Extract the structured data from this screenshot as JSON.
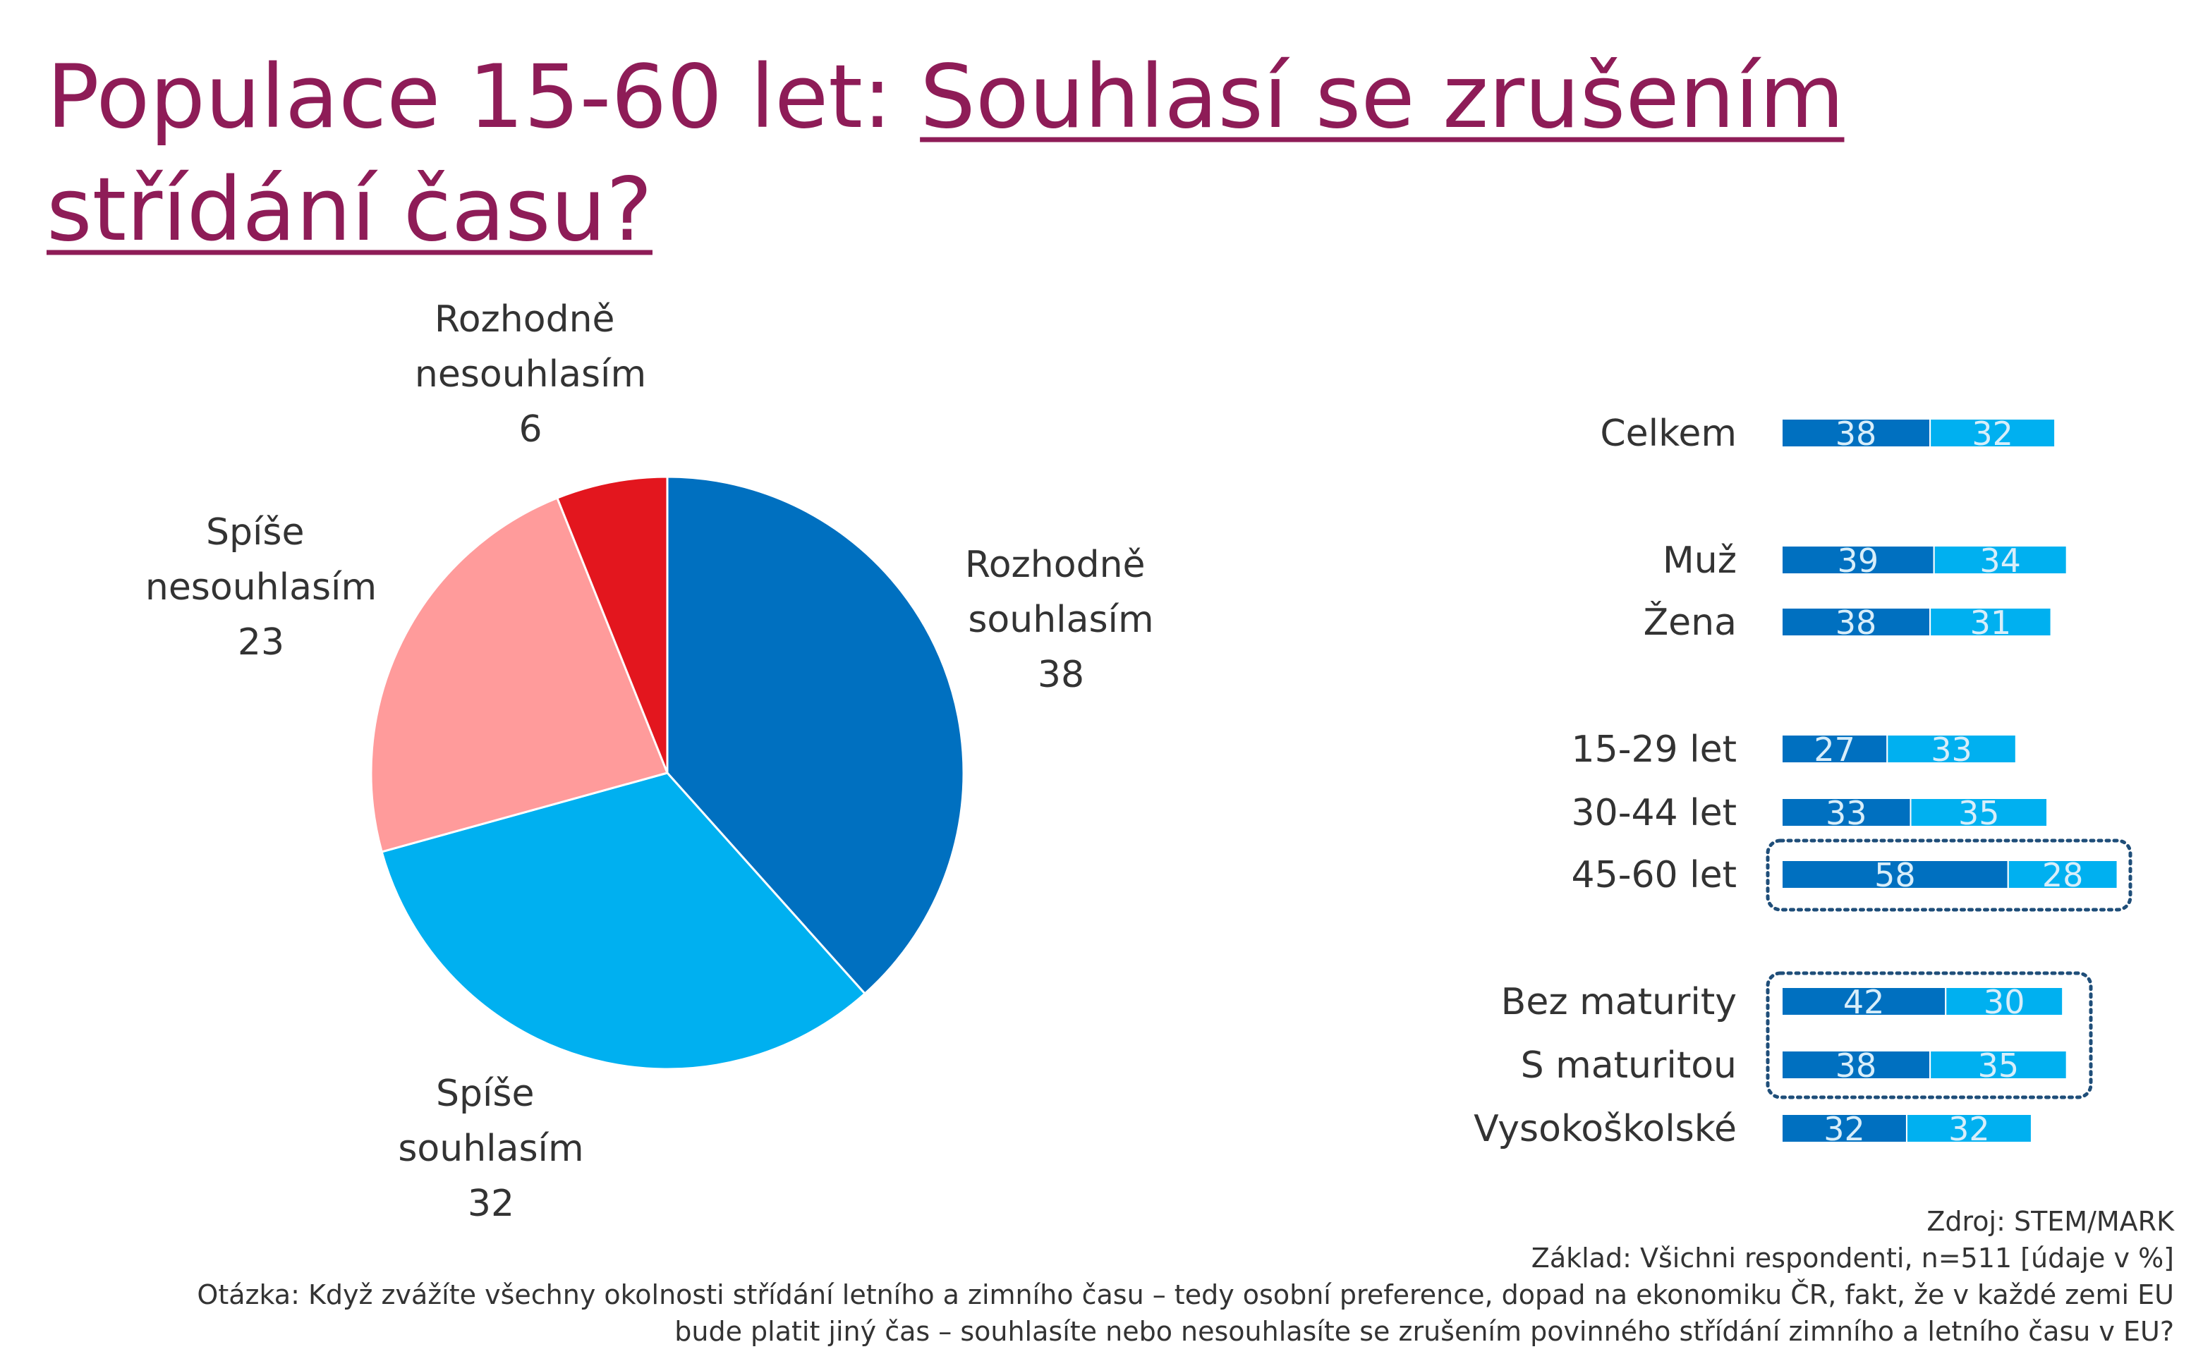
{
  "title": {
    "prefix": "Populace 15-60 let: ",
    "question_line1": "Souhlasí se zrušením",
    "question_line2": "střídání času?"
  },
  "chart_data": [
    {
      "type": "pie",
      "categories": [
        "Rozhodně souhlasím",
        "Spíše souhlasím",
        "Spíše nesouhlasím",
        "Rozhodně nesouhlasím"
      ],
      "values": [
        38,
        32,
        23,
        6
      ],
      "colors": [
        "#0070c0",
        "#00b0f0",
        "#ff9b9b",
        "#e3161e"
      ]
    },
    {
      "type": "stacked-bar-horizontal",
      "categories": [
        "Celkem",
        "Muž",
        "Žena",
        "15-29 let",
        "30-44 let",
        "45-60 let",
        "Bez maturity",
        "S maturitou",
        "Vysokoškolské"
      ],
      "series": [
        {
          "color": "#0070c0",
          "values": [
            38,
            39,
            38,
            27,
            33,
            58,
            42,
            38,
            32
          ]
        },
        {
          "color": "#00b0f0",
          "values": [
            32,
            34,
            31,
            33,
            35,
            28,
            30,
            35,
            32
          ]
        }
      ]
    }
  ],
  "footer": {
    "source": "Zdroj: STEM/MARK",
    "base": "Základ: Všichni respondenti, n=511 [údaje v %]",
    "question": [
      "Otázka: Když zvážíte všechny okolnosti střídání letního a zimního času – tedy osobní preference, dopad na ekonomiku ČR, fakt, že v každé zemi EU",
      "bude platit jiný čas – souhlasíte nebo nesouhlasíte se zrušením povinného střídání zimního a letního času v EU?"
    ]
  }
}
